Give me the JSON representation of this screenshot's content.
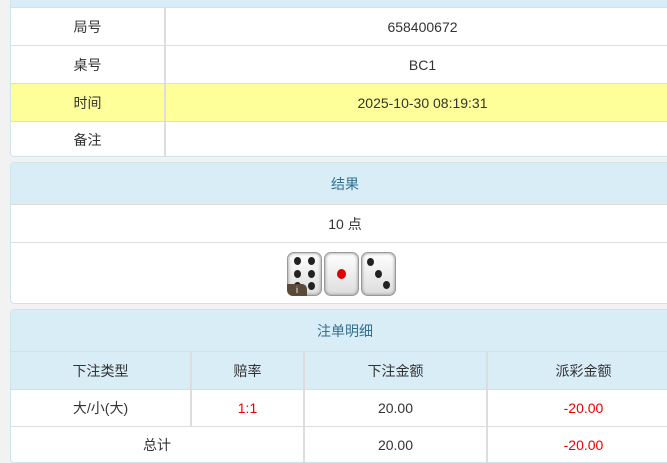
{
  "info": {
    "rows": [
      {
        "label": "局号",
        "value": "658400672"
      },
      {
        "label": "桌号",
        "value": "BC1"
      },
      {
        "label": "时间",
        "value": "2025-10-30 08:19:31"
      },
      {
        "label": "备注",
        "value": ""
      }
    ]
  },
  "result": {
    "title": "结果",
    "points": "10 点",
    "dice": [
      6,
      1,
      3
    ],
    "badge": "i"
  },
  "bets": {
    "title": "注单明细",
    "headers": [
      "下注类型",
      "赔率",
      "下注金额",
      "派彩金额"
    ],
    "rows": [
      {
        "type": "大/小(大)",
        "odds": "1:1",
        "amount": "20.00",
        "payout": "-20.00"
      }
    ],
    "total": {
      "label": "总计",
      "amount": "20.00",
      "payout": "-20.00"
    }
  },
  "colors": {
    "header_bg": "#d9edf7",
    "highlight": "#ffff99",
    "negative": "#e00000"
  }
}
